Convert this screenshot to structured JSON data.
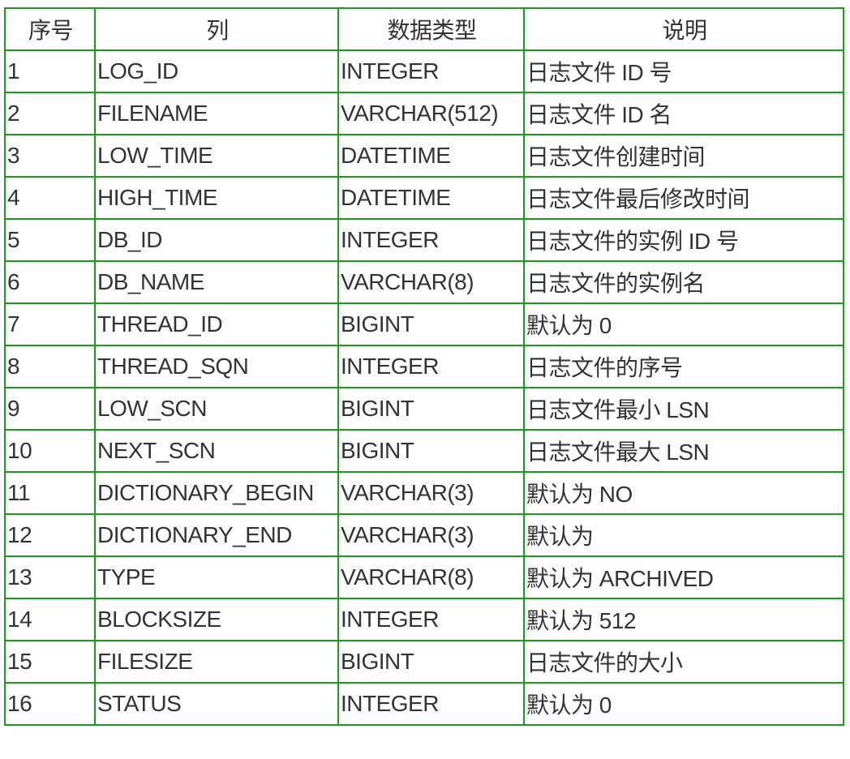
{
  "table": {
    "headers": [
      "序号",
      "列",
      "数据类型",
      "说明"
    ],
    "rows": [
      [
        "1",
        "LOG_ID",
        "INTEGER",
        "日志文件 ID 号"
      ],
      [
        "2",
        "FILENAME",
        "VARCHAR(512)",
        "日志文件 ID 名"
      ],
      [
        "3",
        "LOW_TIME",
        "DATETIME",
        "日志文件创建时间"
      ],
      [
        "4",
        "HIGH_TIME",
        "DATETIME",
        "日志文件最后修改时间"
      ],
      [
        "5",
        "DB_ID",
        "INTEGER",
        "日志文件的实例 ID 号"
      ],
      [
        "6",
        "DB_NAME",
        "VARCHAR(8)",
        "日志文件的实例名"
      ],
      [
        "7",
        "THREAD_ID",
        "BIGINT",
        "默认为 0"
      ],
      [
        "8",
        "THREAD_SQN",
        "INTEGER",
        "日志文件的序号"
      ],
      [
        "9",
        "LOW_SCN",
        "BIGINT",
        "日志文件最小 LSN"
      ],
      [
        "10",
        "NEXT_SCN",
        "BIGINT",
        "日志文件最大 LSN"
      ],
      [
        "11",
        "DICTIONARY_BEGIN",
        "VARCHAR(3)",
        "默认为 NO"
      ],
      [
        "12",
        "DICTIONARY_END",
        "VARCHAR(3)",
        "默认为"
      ],
      [
        "13",
        "TYPE",
        "VARCHAR(8)",
        "默认为 ARCHIVED"
      ],
      [
        "14",
        "BLOCKSIZE",
        "INTEGER",
        "默认为 512"
      ],
      [
        "15",
        "FILESIZE",
        "BIGINT",
        "日志文件的大小"
      ],
      [
        "16",
        "STATUS",
        "INTEGER",
        "默认为 0"
      ]
    ]
  },
  "colors": {
    "border": "#1a9e1a",
    "text": "#333333"
  }
}
